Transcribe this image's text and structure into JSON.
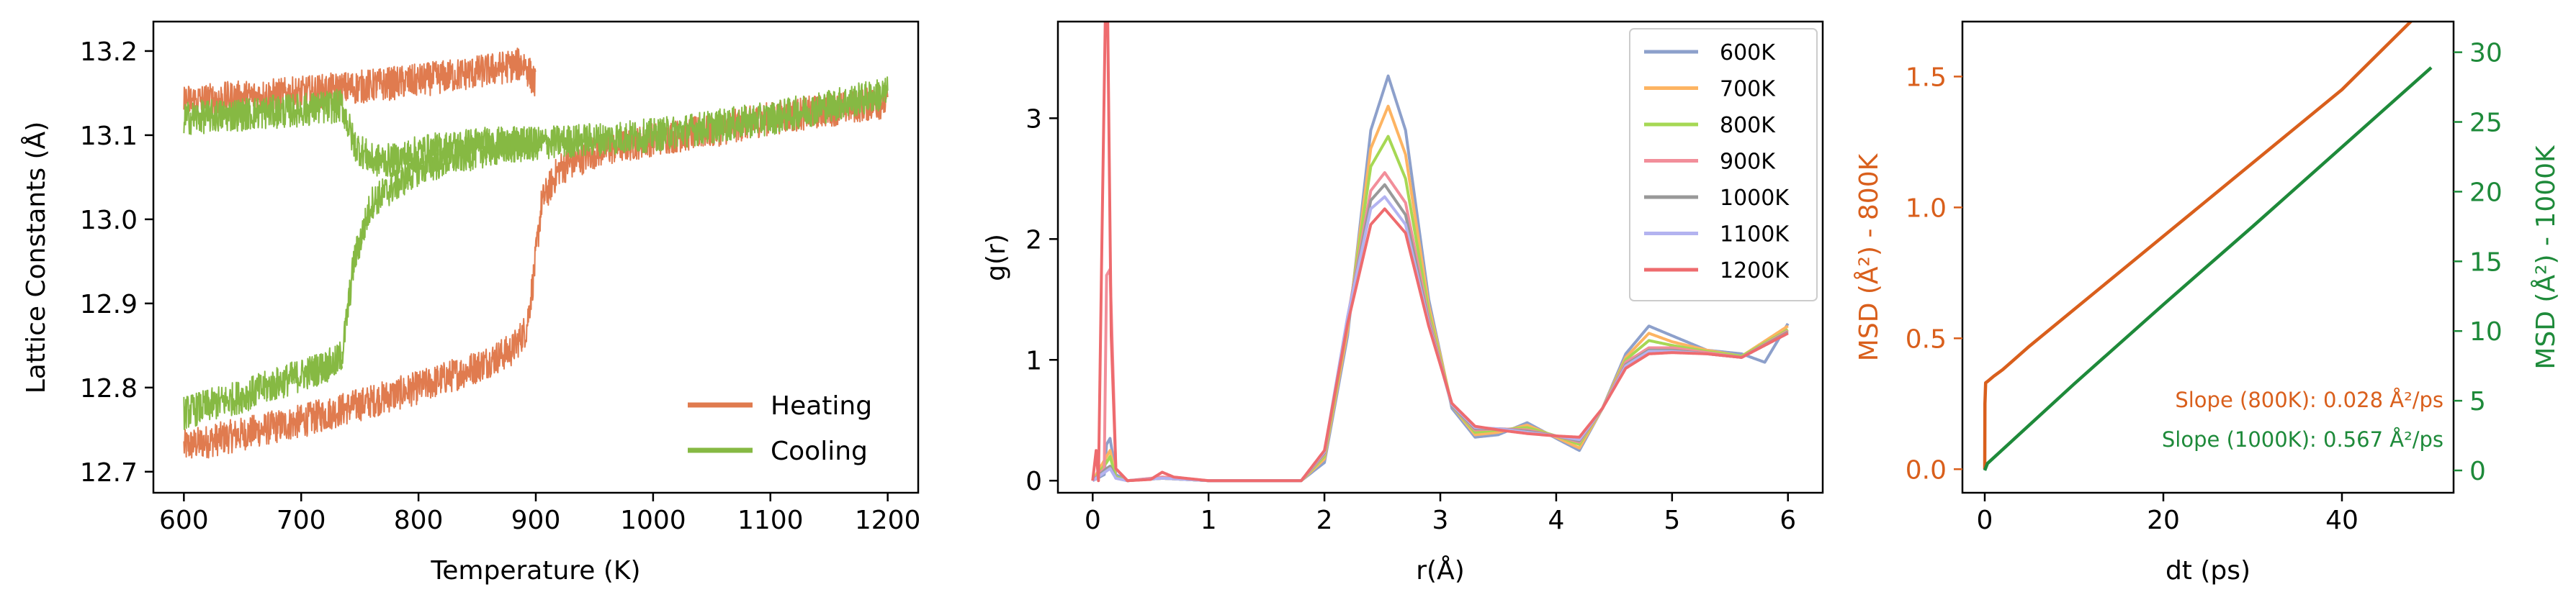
{
  "chart_data": [
    {
      "type": "line",
      "title": "",
      "xlabel": "Temperature (K)",
      "ylabel": "Lattice Constants (Å)",
      "xlim": [
        574,
        1226
      ],
      "ylim": [
        12.675,
        13.235
      ],
      "xticks": [
        600,
        700,
        800,
        900,
        1000,
        1100,
        1200
      ],
      "yticks": [
        12.7,
        12.8,
        12.9,
        13.0,
        13.1,
        13.2
      ],
      "legend_position": "lower-right",
      "noise_amplitude": 0.02,
      "series": [
        {
          "name": "Heating",
          "color": "#e07b4f",
          "segments": [
            {
              "x": [
                600,
                650,
                700,
                750,
                800,
                850,
                880,
                892,
                898,
                905,
                920,
                950,
                1000,
                1050,
                1100,
                1150,
                1200
              ],
              "y": [
                12.73,
                12.745,
                12.76,
                12.78,
                12.8,
                12.825,
                12.845,
                12.87,
                12.93,
                13.02,
                13.06,
                13.08,
                13.095,
                13.105,
                13.12,
                13.13,
                13.14
              ]
            },
            {
              "x": [
                600,
                700,
                800,
                850,
                890,
                900
              ],
              "y": [
                13.14,
                13.15,
                13.165,
                13.175,
                13.185,
                13.16
              ]
            }
          ]
        },
        {
          "name": "Cooling",
          "color": "#86b943",
          "segments": [
            {
              "x": [
                600,
                650,
                700,
                730,
                735
              ],
              "y": [
                12.77,
                12.79,
                12.815,
                12.83,
                12.84
              ]
            },
            {
              "x": [
                735,
                745,
                760,
                780,
                800,
                850,
                900,
                950,
                1000,
                1100,
                1200
              ],
              "y": [
                12.84,
                12.95,
                13.02,
                13.04,
                13.06,
                13.08,
                13.09,
                13.095,
                13.1,
                13.12,
                13.15
              ]
            },
            {
              "x": [
                600,
                650,
                700,
                735,
                745,
                760,
                780,
                800,
                850,
                900
              ],
              "y": [
                13.12,
                13.125,
                13.13,
                13.135,
                13.09,
                13.07,
                13.07,
                13.08,
                13.09,
                13.09
              ]
            }
          ]
        }
      ]
    },
    {
      "type": "line",
      "title": "",
      "xlabel": "r(Å)",
      "ylabel": "g(r)",
      "xlim": [
        -0.3,
        6.3
      ],
      "ylim": [
        -0.1,
        3.8
      ],
      "xticks": [
        0,
        1,
        2,
        3,
        4,
        5,
        6
      ],
      "yticks": [
        0,
        1,
        2,
        3
      ],
      "legend_position": "top-right",
      "series": [
        {
          "name": "600K",
          "color": "#8da0cb",
          "x": [
            0.0,
            0.1,
            0.12,
            0.15,
            0.2,
            0.3,
            0.6,
            1.0,
            1.8,
            2.0,
            2.2,
            2.4,
            2.55,
            2.7,
            2.9,
            3.1,
            3.3,
            3.5,
            3.75,
            4.0,
            4.2,
            4.4,
            4.6,
            4.8,
            5.0,
            5.3,
            5.6,
            5.8,
            6.0
          ],
          "y": [
            0.0,
            0.05,
            0.3,
            0.35,
            0.05,
            0.0,
            0.02,
            0.0,
            0.0,
            0.15,
            1.2,
            2.9,
            3.35,
            2.9,
            1.5,
            0.6,
            0.36,
            0.38,
            0.48,
            0.35,
            0.25,
            0.6,
            1.05,
            1.28,
            1.2,
            1.08,
            1.05,
            0.98,
            1.3
          ]
        },
        {
          "name": "700K",
          "color": "#fdb462",
          "x": [
            0.0,
            0.12,
            0.15,
            0.2,
            0.3,
            0.6,
            1.0,
            1.8,
            2.0,
            2.2,
            2.4,
            2.55,
            2.7,
            2.9,
            3.1,
            3.3,
            3.5,
            3.75,
            4.0,
            4.2,
            4.4,
            4.6,
            4.8,
            5.0,
            5.3,
            5.6,
            6.0
          ],
          "y": [
            0.0,
            0.2,
            0.25,
            0.03,
            0.0,
            0.02,
            0.0,
            0.0,
            0.18,
            1.25,
            2.75,
            3.1,
            2.7,
            1.45,
            0.62,
            0.38,
            0.4,
            0.46,
            0.36,
            0.27,
            0.6,
            1.02,
            1.22,
            1.15,
            1.08,
            1.03,
            1.28
          ]
        },
        {
          "name": "800K",
          "color": "#a6d854",
          "x": [
            0.0,
            0.12,
            0.15,
            0.2,
            0.3,
            0.6,
            1.0,
            1.8,
            2.0,
            2.2,
            2.4,
            2.55,
            2.7,
            2.9,
            3.1,
            3.3,
            3.5,
            3.75,
            4.0,
            4.2,
            4.4,
            4.6,
            4.8,
            5.0,
            5.3,
            5.6,
            6.0
          ],
          "y": [
            0.0,
            0.15,
            0.2,
            0.03,
            0.0,
            0.02,
            0.0,
            0.0,
            0.2,
            1.3,
            2.6,
            2.85,
            2.5,
            1.4,
            0.62,
            0.4,
            0.42,
            0.44,
            0.37,
            0.3,
            0.6,
            1.0,
            1.16,
            1.12,
            1.07,
            1.03,
            1.25
          ]
        },
        {
          "name": "900K",
          "color": "#f28e9a",
          "x": [
            0.0,
            0.1,
            0.12,
            0.15,
            0.2,
            0.3,
            0.6,
            1.0,
            1.8,
            2.0,
            2.2,
            2.4,
            2.52,
            2.7,
            2.9,
            3.1,
            3.3,
            3.5,
            3.75,
            4.0,
            4.2,
            4.4,
            4.6,
            4.8,
            5.0,
            5.3,
            5.6,
            6.0
          ],
          "y": [
            0.0,
            0.1,
            1.7,
            1.75,
            0.1,
            0.0,
            0.03,
            0.0,
            0.0,
            0.22,
            1.35,
            2.4,
            2.55,
            2.3,
            1.35,
            0.62,
            0.42,
            0.43,
            0.42,
            0.37,
            0.32,
            0.6,
            0.98,
            1.1,
            1.1,
            1.06,
            1.02,
            1.24
          ]
        },
        {
          "name": "1000K",
          "color": "#999999",
          "x": [
            0.0,
            0.12,
            0.15,
            0.2,
            0.3,
            0.6,
            1.0,
            1.8,
            2.0,
            2.2,
            2.4,
            2.52,
            2.7,
            2.9,
            3.1,
            3.3,
            3.5,
            3.75,
            4.0,
            4.2,
            4.4,
            4.6,
            4.8,
            5.0,
            5.3,
            5.6,
            6.0
          ],
          "y": [
            0.0,
            0.1,
            0.12,
            0.02,
            0.0,
            0.02,
            0.0,
            0.0,
            0.23,
            1.35,
            2.32,
            2.45,
            2.2,
            1.32,
            0.62,
            0.43,
            0.43,
            0.41,
            0.37,
            0.33,
            0.6,
            0.96,
            1.08,
            1.08,
            1.05,
            1.02,
            1.23
          ]
        },
        {
          "name": "1100K",
          "color": "#b3b3f0",
          "x": [
            0.0,
            0.12,
            0.15,
            0.2,
            0.3,
            0.6,
            1.0,
            1.8,
            2.0,
            2.2,
            2.4,
            2.52,
            2.7,
            2.9,
            3.1,
            3.3,
            3.5,
            3.75,
            4.0,
            4.2,
            4.4,
            4.6,
            4.8,
            5.0,
            5.3,
            5.6,
            6.0
          ],
          "y": [
            0.0,
            0.08,
            0.1,
            0.02,
            0.0,
            0.02,
            0.0,
            0.0,
            0.24,
            1.36,
            2.25,
            2.35,
            2.12,
            1.3,
            0.63,
            0.44,
            0.43,
            0.4,
            0.37,
            0.34,
            0.6,
            0.95,
            1.07,
            1.07,
            1.05,
            1.02,
            1.22
          ]
        },
        {
          "name": "1200K",
          "color": "#ee6b6e",
          "x": [
            0.0,
            0.03,
            0.05,
            0.08,
            0.11,
            0.13,
            0.16,
            0.2,
            0.3,
            0.5,
            0.6,
            0.7,
            1.0,
            1.8,
            2.0,
            2.2,
            2.4,
            2.52,
            2.7,
            2.9,
            3.1,
            3.3,
            3.5,
            3.75,
            4.0,
            4.2,
            4.4,
            4.6,
            4.8,
            5.0,
            5.3,
            5.6,
            6.0
          ],
          "y": [
            0.0,
            0.25,
            0.0,
            2.0,
            3.9,
            3.8,
            1.2,
            0.1,
            0.0,
            0.01,
            0.07,
            0.03,
            0.0,
            0.0,
            0.25,
            1.3,
            2.12,
            2.25,
            2.05,
            1.28,
            0.64,
            0.45,
            0.42,
            0.39,
            0.37,
            0.36,
            0.6,
            0.93,
            1.05,
            1.06,
            1.05,
            1.02,
            1.22
          ]
        }
      ]
    },
    {
      "type": "line",
      "title": "",
      "xlabel": "dt (ps)",
      "ylabel_left": "MSD (Å²) - 800K",
      "ylabel_right": "MSD (Å²) - 1000K",
      "xlim": [
        -2.5,
        52.5
      ],
      "ylim_left": [
        -0.09,
        1.71
      ],
      "ylim_right": [
        -1.6,
        32.2
      ],
      "xticks": [
        0,
        20,
        40
      ],
      "yticks_left": [
        0.0,
        0.5,
        1.0,
        1.5
      ],
      "yticks_right": [
        0,
        5,
        10,
        15,
        20,
        25,
        30
      ],
      "left_color": "#d95f1c",
      "right_color": "#1e8a3a",
      "annotations": [
        {
          "text": "Slope (800K): 0.028 Å²/ps",
          "color": "#d95f1c"
        },
        {
          "text": "Slope (1000K): 0.567 Å²/ps",
          "color": "#1e8a3a"
        }
      ],
      "series": [
        {
          "axis": "left",
          "color": "#d95f1c",
          "x": [
            0,
            0.02,
            0.1,
            0.3,
            1,
            2,
            5,
            10,
            20,
            30,
            40,
            48
          ],
          "y": [
            0.0,
            0.25,
            0.33,
            0.335,
            0.355,
            0.38,
            0.47,
            0.61,
            0.89,
            1.17,
            1.45,
            1.72
          ]
        },
        {
          "axis": "right",
          "color": "#1e8a3a",
          "x": [
            0,
            0.3,
            10,
            20,
            30,
            40,
            50
          ],
          "y": [
            0.0,
            0.5,
            6.2,
            11.9,
            17.5,
            23.2,
            28.9
          ]
        }
      ]
    }
  ]
}
